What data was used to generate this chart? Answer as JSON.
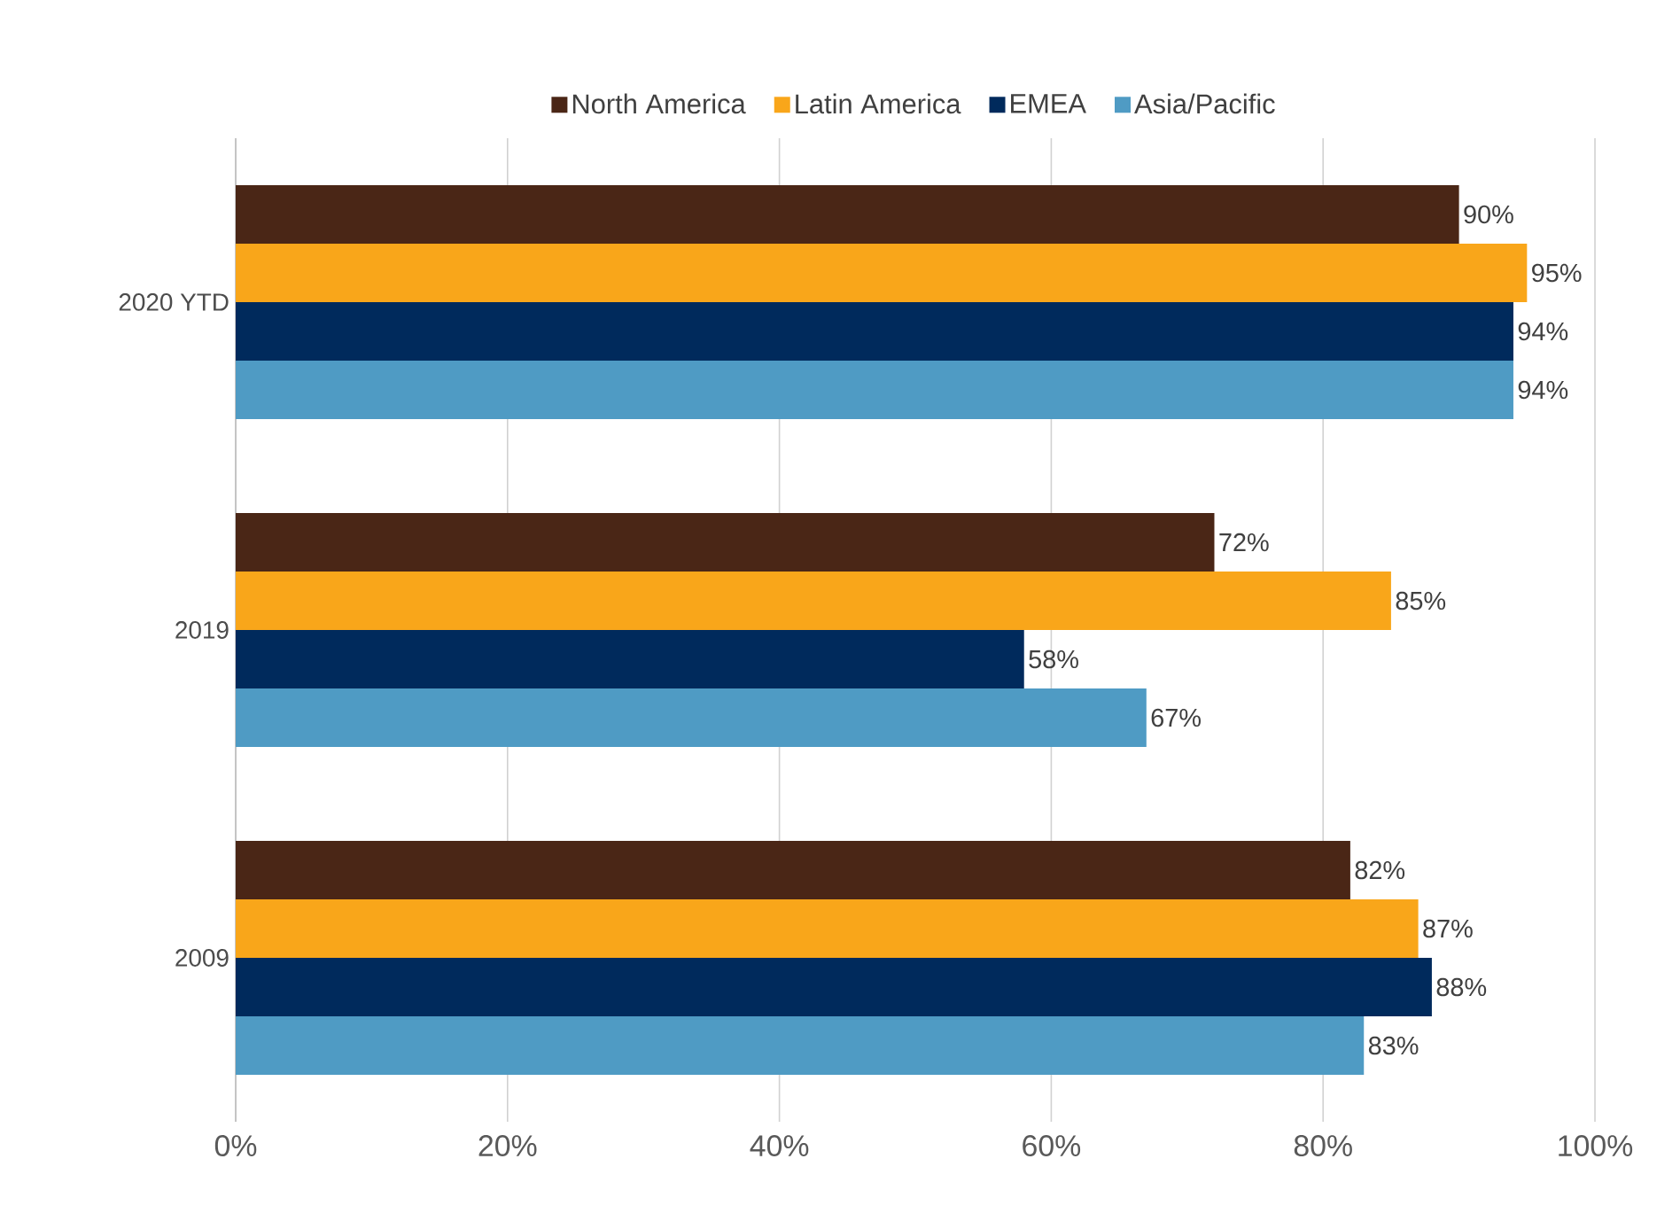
{
  "chart_data": {
    "type": "bar",
    "orientation": "horizontal",
    "categories": [
      "2020 YTD",
      "2019",
      "2009"
    ],
    "series": [
      {
        "name": "North America",
        "color": "#4a2616",
        "values": [
          90,
          72,
          82
        ],
        "value_labels": [
          "90%",
          "72%",
          "82%"
        ]
      },
      {
        "name": "Latin America",
        "color": "#f9a61a",
        "values": [
          95,
          85,
          87
        ],
        "value_labels": [
          "95%",
          "85%",
          "87%"
        ]
      },
      {
        "name": "EMEA",
        "color": "#002a5c",
        "values": [
          94,
          58,
          88
        ],
        "value_labels": [
          "94%",
          "58%",
          "88%"
        ]
      },
      {
        "name": "Asia/Pacific",
        "color": "#4f9bc4",
        "values": [
          94,
          67,
          83
        ],
        "value_labels": [
          "94%",
          "67%",
          "83%"
        ]
      }
    ],
    "xlim": [
      0,
      100
    ],
    "xticks": [
      {
        "value": 0,
        "label": "0%"
      },
      {
        "value": 20,
        "label": "20%"
      },
      {
        "value": 40,
        "label": "40%"
      },
      {
        "value": 60,
        "label": "60%"
      },
      {
        "value": 80,
        "label": "80%"
      },
      {
        "value": 100,
        "label": "100%"
      }
    ],
    "grid": "x",
    "legend": "top"
  }
}
